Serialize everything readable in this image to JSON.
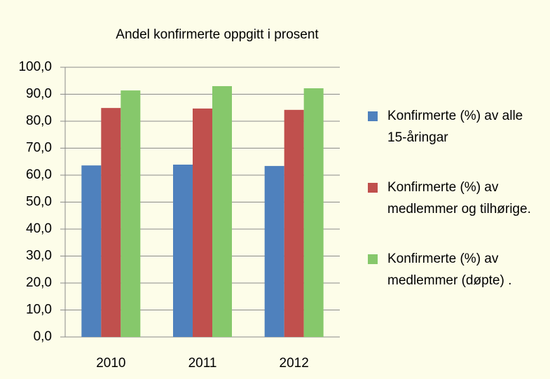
{
  "chart_data": {
    "type": "bar",
    "title": "Andel konfirmerte oppgitt i prosent",
    "categories": [
      "2010",
      "2011",
      "2012"
    ],
    "series": [
      {
        "name": "Konfirmerte (%) av alle 15-åringar",
        "color": "#4f81bd",
        "values": [
          63.6,
          63.9,
          63.4
        ]
      },
      {
        "name": "Konfirmerte (%) av medlemmer og tilhørige.",
        "color": "#c0504d",
        "values": [
          84.9,
          84.7,
          84.2
        ]
      },
      {
        "name": "Konfirmerte (%) av medlemmer (døpte) .",
        "color": "#86c86b",
        "values": [
          91.4,
          93.0,
          92.2
        ]
      }
    ],
    "ylim": [
      0,
      100
    ],
    "yticks": [
      {
        "value": 0,
        "label": "0,0"
      },
      {
        "value": 10,
        "label": "10,0"
      },
      {
        "value": 20,
        "label": "20,0"
      },
      {
        "value": 30,
        "label": "30,0"
      },
      {
        "value": 40,
        "label": "40,0"
      },
      {
        "value": 50,
        "label": "50,0"
      },
      {
        "value": 60,
        "label": "60,0"
      },
      {
        "value": 70,
        "label": "70,0"
      },
      {
        "value": 80,
        "label": "80,0"
      },
      {
        "value": 90,
        "label": "90,0"
      },
      {
        "value": 100,
        "label": "100,0"
      }
    ],
    "grid": true,
    "legend": "right"
  }
}
